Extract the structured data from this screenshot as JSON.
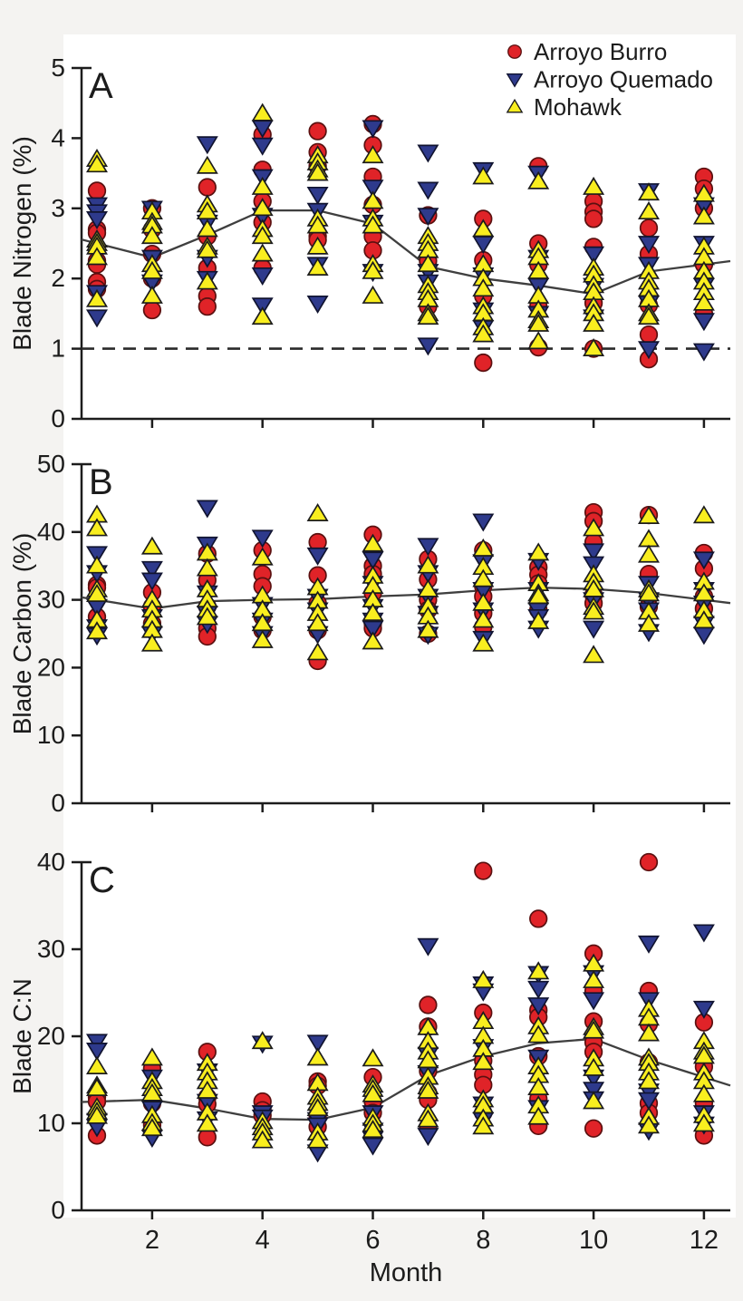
{
  "figure": {
    "background": "#f4f3f1",
    "plot_background": "#ffffff",
    "axis_color": "#1c1c1c",
    "mean_line_color": "#3f3f3f",
    "x_axis": {
      "label": "Month",
      "ticks": [
        2,
        4,
        6,
        8,
        10,
        12
      ],
      "months": [
        1,
        2,
        3,
        4,
        5,
        6,
        7,
        8,
        9,
        10,
        11,
        12
      ]
    }
  },
  "legend": {
    "items": [
      {
        "label": "Arroyo Burro",
        "marker": "circle",
        "color": "#e02328",
        "edge": "#5a1010"
      },
      {
        "label": "Arroyo Quemado",
        "marker": "triangle-down",
        "color": "#2e3a8c",
        "edge": "#111430"
      },
      {
        "label": "Mohawk",
        "marker": "triangle-up",
        "color": "#f9ee1f",
        "edge": "#1c1c1c"
      }
    ]
  },
  "chart_data": [
    {
      "type": "scatter",
      "panel_label": "A",
      "ylabel": "Blade Nitrogen (%)",
      "ylim": [
        0,
        5
      ],
      "yticks": [
        0,
        1,
        2,
        3,
        4,
        5
      ],
      "reference_line": {
        "y": 1,
        "style": "dashed"
      },
      "mean_line": [
        2.5,
        2.3,
        2.62,
        2.97,
        2.97,
        2.78,
        2.17,
        2.0,
        1.9,
        1.78,
        2.1,
        2.2
      ],
      "series": [
        {
          "name": "Arroyo Burro",
          "marker": "circle",
          "color": "#e02328",
          "edge": "#5a1010",
          "points_by_month": [
            [
              3.25,
              2.7,
              2.65,
              2.25,
              2.2,
              1.95,
              1.85
            ],
            [
              3.0,
              2.7,
              2.35,
              2.0,
              1.55
            ],
            [
              3.3,
              2.6,
              2.15,
              1.75,
              1.6
            ],
            [
              4.05,
              3.55,
              3.1,
              2.8,
              2.15
            ],
            [
              4.1,
              3.8,
              3.6,
              2.6,
              2.55
            ],
            [
              4.2,
              3.9,
              3.45,
              3.05,
              2.6,
              2.4
            ],
            [
              2.9,
              2.25,
              1.6
            ],
            [
              2.85,
              2.26,
              1.75,
              0.8
            ],
            [
              3.6,
              2.5,
              2.2,
              1.6,
              1.02
            ],
            [
              3.1,
              2.95,
              2.85,
              2.45,
              1.65,
              1.0
            ],
            [
              2.72,
              2.35,
              1.62,
              1.2,
              0.85
            ],
            [
              3.45,
              3.28,
              3.0,
              2.2,
              1.5
            ]
          ]
        },
        {
          "name": "Arroyo Quemado",
          "marker": "triangle-down",
          "color": "#2e3a8c",
          "edge": "#111430",
          "points_by_month": [
            [
              3.05,
              2.95,
              2.85,
              1.8,
              1.45
            ],
            [
              3.0,
              2.3,
              1.95
            ],
            [
              3.92,
              2.8,
              2.3,
              2.0
            ],
            [
              4.15,
              3.9,
              3.45,
              2.9,
              2.05,
              1.62
            ],
            [
              3.2,
              2.97,
              2.2,
              1.65
            ],
            [
              4.15,
              3.3,
              2.8,
              2.1
            ],
            [
              3.8,
              3.27,
              2.9,
              2.1,
              1.95,
              1.05
            ],
            [
              3.55,
              2.5,
              2.05,
              1.55,
              1.3
            ],
            [
              3.5,
              2.3,
              1.9,
              1.5
            ],
            [
              2.35,
              1.9,
              1.45
            ],
            [
              3.25,
              2.5,
              2.2,
              1.65,
              1.0
            ],
            [
              3.05,
              2.5,
              1.9,
              1.4,
              0.97
            ]
          ]
        },
        {
          "name": "Mohawk",
          "marker": "triangle-up",
          "color": "#f9ee1f",
          "edge": "#1c1c1c",
          "points_by_month": [
            [
              3.7,
              3.62,
              2.55,
              2.5,
              2.45,
              2.3,
              1.7
            ],
            [
              2.95,
              2.8,
              2.75,
              2.6,
              2.2,
              2.1,
              1.75
            ],
            [
              3.6,
              3.05,
              2.95,
              2.7,
              2.45,
              2.4,
              1.95
            ],
            [
              4.35,
              3.3,
              3.0,
              2.7,
              2.6,
              2.35,
              1.45
            ],
            [
              3.75,
              3.65,
              3.55,
              3.5,
              2.85,
              2.75,
              2.45,
              2.15
            ],
            [
              3.75,
              3.1,
              2.85,
              2.75,
              2.2,
              2.1,
              1.75
            ],
            [
              2.6,
              2.5,
              2.4,
              2.2,
              1.9,
              1.8,
              1.7,
              1.5,
              1.45
            ],
            [
              3.45,
              2.7,
              2.2,
              2.0,
              1.85,
              1.6,
              1.5,
              1.3,
              1.2
            ],
            [
              3.38,
              2.4,
              2.3,
              2.1,
              1.75,
              1.55,
              1.4,
              1.35,
              1.1
            ],
            [
              3.3,
              2.15,
              2.05,
              1.9,
              1.8,
              1.6,
              1.5,
              1.35,
              1.0
            ],
            [
              3.22,
              2.95,
              2.1,
              1.95,
              1.85,
              1.7,
              1.5,
              1.45
            ],
            [
              3.2,
              2.88,
              2.45,
              2.3,
              2.1,
              1.95,
              1.8,
              1.65
            ]
          ]
        }
      ]
    },
    {
      "type": "scatter",
      "panel_label": "B",
      "ylabel": "Blade Carbon (%)",
      "ylim": [
        0,
        50
      ],
      "yticks": [
        0,
        10,
        20,
        30,
        40,
        50
      ],
      "mean_line": [
        30.0,
        28.7,
        29.8,
        30.0,
        30.1,
        30.5,
        30.8,
        31.4,
        31.8,
        31.6,
        31.0,
        30.0
      ],
      "series": [
        {
          "name": "Arroyo Burro",
          "marker": "circle",
          "color": "#e02328",
          "edge": "#5a1010",
          "points_by_month": [
            [
              32.2,
              31.8,
              27.5
            ],
            [
              31.1,
              29.0,
              26.5
            ],
            [
              36.8,
              32.9,
              29.0,
              25.8,
              24.6
            ],
            [
              37.3,
              33.8,
              32.0,
              27.5,
              25.5
            ],
            [
              38.5,
              33.6,
              29.5,
              25.5,
              21.0
            ],
            [
              39.6,
              35.0,
              33.8,
              31.0,
              26.5,
              25.8
            ],
            [
              36.0,
              33.0,
              30.0,
              28.5,
              25.0
            ],
            [
              37.3,
              32.0,
              30.5,
              28.0,
              26.0
            ],
            [
              34.8,
              33.7,
              32.4,
              28.5
            ],
            [
              42.9,
              41.6,
              38.5,
              30.7,
              29.5
            ],
            [
              42.5,
              33.8,
              30.4,
              29.0
            ],
            [
              36.9,
              34.6,
              30.5,
              28.7
            ]
          ]
        },
        {
          "name": "Arroyo Quemado",
          "marker": "triangle-down",
          "color": "#2e3a8c",
          "edge": "#111430",
          "points_by_month": [
            [
              36.8,
              34.0,
              29.0,
              26.0,
              24.8
            ],
            [
              34.6,
              32.9,
              27.5,
              25.0
            ],
            [
              43.6,
              38.2,
              31.0,
              28.0,
              26.5
            ],
            [
              39.2,
              29.3,
              27.0,
              25.0
            ],
            [
              36.6,
              30.5,
              28.5,
              25.0
            ],
            [
              36.0,
              32.4,
              29.0,
              27.0,
              25.8
            ],
            [
              38.0,
              34.0,
              30.5,
              28.0,
              24.9
            ],
            [
              41.6,
              35.6,
              31.5,
              28.5,
              24.3
            ],
            [
              35.8,
              31.5,
              28.5,
              27.5,
              25.8
            ],
            [
              37.2,
              35.3,
              30.0,
              25.8
            ],
            [
              32.4,
              30.0,
              28.5,
              25.3
            ],
            [
              36.0,
              31.5,
              29.5,
              26.5,
              24.9
            ]
          ]
        },
        {
          "name": "Mohawk",
          "marker": "triangle-up",
          "color": "#f9ee1f",
          "edge": "#1c1c1c",
          "points_by_month": [
            [
              42.5,
              40.5,
              35.0,
              31.5,
              30.8,
              27.0,
              25.3
            ],
            [
              37.8,
              30.0,
              28.5,
              27.0,
              25.5,
              23.5
            ],
            [
              36.9,
              34.6,
              31.5,
              30.0,
              28.5,
              27.4
            ],
            [
              36.2,
              30.6,
              28.5,
              26.5,
              24.0
            ],
            [
              42.7,
              31.8,
              29.8,
              28.0,
              26.5,
              22.2
            ],
            [
              38.2,
              33.5,
              32.0,
              30.0,
              28.0,
              23.8
            ],
            [
              35.0,
              31.5,
              29.0,
              27.5,
              25.5
            ],
            [
              37.5,
              34.8,
              33.0,
              29.5,
              27.0,
              23.5
            ],
            [
              36.9,
              32.4,
              30.9,
              30.5,
              26.8
            ],
            [
              40.5,
              33.7,
              32.5,
              31.5,
              28.9,
              28.2,
              21.8
            ],
            [
              42.3,
              38.9,
              36.6,
              31.5,
              30.9,
              28.2,
              26.4
            ],
            [
              42.4,
              32.6,
              30.9,
              28.4,
              26.9
            ]
          ]
        }
      ]
    },
    {
      "type": "scatter",
      "panel_label": "C",
      "ylabel": "Blade C:N",
      "ylim": [
        0,
        40
      ],
      "yticks": [
        0,
        10,
        20,
        30,
        40
      ],
      "mean_line": [
        12.5,
        12.7,
        11.7,
        10.5,
        10.4,
        11.8,
        15.5,
        17.7,
        19.2,
        19.7,
        17.3,
        15.3
      ],
      "series": [
        {
          "name": "Arroyo Burro",
          "marker": "circle",
          "color": "#e02328",
          "edge": "#5a1010",
          "points_by_month": [
            [
              13.0,
              12.5,
              8.6
            ],
            [
              16.3,
              12.3,
              9.8
            ],
            [
              18.2,
              13.0,
              12.2,
              8.4
            ],
            [
              12.5,
              11.5,
              10.9
            ],
            [
              14.8,
              14.3,
              10.9,
              9.6
            ],
            [
              15.3,
              12.5,
              11.2,
              8.6
            ],
            [
              23.6,
              21.1,
              16.0,
              13.5,
              12.7,
              9.6
            ],
            [
              39.0,
              22.7,
              17.2,
              15.6,
              14.4,
              11.2
            ],
            [
              33.5,
              23.0,
              22.2,
              17.7,
              12.8,
              9.7
            ],
            [
              29.5,
              25.2,
              21.7,
              19.3,
              18.2,
              9.4
            ],
            [
              40.0,
              25.2,
              21.4,
              17.0,
              12.3,
              11.2
            ],
            [
              21.6,
              16.5,
              12.3,
              8.6
            ]
          ]
        },
        {
          "name": "Arroyo Quemado",
          "marker": "triangle-down",
          "color": "#2e3a8c",
          "edge": "#111430",
          "points_by_month": [
            [
              19.4,
              18.4,
              10.3,
              9.6
            ],
            [
              15.3,
              11.7,
              8.4
            ],
            [
              16.0,
              12.5,
              10.5
            ],
            [
              19.2,
              11.2,
              10.7
            ],
            [
              19.3,
              10.4,
              9.8,
              6.7
            ],
            [
              11.2,
              9.2,
              8.2,
              7.5
            ],
            [
              30.4,
              17.9,
              15.8,
              8.6
            ],
            [
              26.0,
              25.2,
              18.8,
              12.2,
              10.4
            ],
            [
              27.2,
              25.5,
              23.6,
              17.6,
              11.8
            ],
            [
              27.3,
              24.2,
              15.3,
              13.9,
              12.8
            ],
            [
              30.7,
              24.2,
              13.7,
              12.7,
              9.2
            ],
            [
              32.0,
              23.2,
              11.2,
              9.9
            ]
          ]
        },
        {
          "name": "Mohawk",
          "marker": "triangle-up",
          "color": "#f9ee1f",
          "edge": "#1c1c1c",
          "points_by_month": [
            [
              16.5,
              14.3,
              14.0,
              11.8,
              11.3,
              10.8
            ],
            [
              17.5,
              14.8,
              14.0,
              13.4,
              10.9,
              10.0,
              9.4
            ],
            [
              16.9,
              15.8,
              14.8,
              13.7,
              11.2,
              9.9
            ],
            [
              19.4,
              10.2,
              9.5,
              8.9,
              8.0
            ],
            [
              17.5,
              14.6,
              13.0,
              12.3,
              11.7,
              8.9,
              8.0
            ],
            [
              17.4,
              14.4,
              13.9,
              13.3,
              10.6,
              9.9,
              9.2
            ],
            [
              21.0,
              19.4,
              18.2,
              17.2,
              15.3,
              14.2,
              13.7,
              11.1,
              10.4
            ],
            [
              26.4,
              21.7,
              20.0,
              18.5,
              17.0,
              12.7,
              12.0,
              10.5,
              9.6
            ],
            [
              27.4,
              21.1,
              20.1,
              16.5,
              15.5,
              14.1,
              12.0,
              10.7
            ],
            [
              28.3,
              26.4,
              21.0,
              20.6,
              17.4,
              16.3,
              12.5
            ],
            [
              23.1,
              22.1,
              20.3,
              17.5,
              16.9,
              15.8,
              14.8,
              10.7,
              9.7
            ],
            [
              19.4,
              18.2,
              17.7,
              15.8,
              14.8,
              13.3,
              10.9,
              9.9
            ]
          ]
        }
      ]
    }
  ]
}
